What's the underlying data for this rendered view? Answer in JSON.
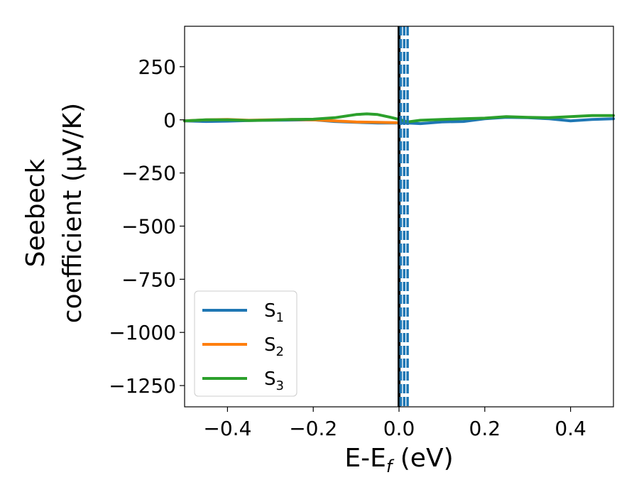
{
  "chart_data": {
    "type": "line",
    "xlabel": "E-E",
    "xlabel_sub": "f",
    "xlabel_unit": " (eV)",
    "ylabel_line1": "Seebeck",
    "ylabel_line2": "coefficient  (μV/K)",
    "xlim": [
      -0.5,
      0.5
    ],
    "ylim": [
      -1350,
      440
    ],
    "xticks": [
      -0.4,
      -0.2,
      0.0,
      0.2,
      0.4
    ],
    "xtick_labels": [
      "−0.4",
      "−0.2",
      "0.0",
      "0.2",
      "0.4"
    ],
    "yticks": [
      250,
      0,
      -250,
      -500,
      -750,
      -1000,
      -1250
    ],
    "ytick_labels": [
      "250",
      "0",
      "−250",
      "−500",
      "−750",
      "−1000",
      "−1250"
    ],
    "grid": false,
    "legend_position": "lower-left",
    "vlines": [
      {
        "x": 0.0,
        "color": "#000000",
        "style": "solid"
      },
      {
        "x": 0.004,
        "color": "#1f77b4",
        "style": "dashed"
      },
      {
        "x": 0.012,
        "color": "#1f77b4",
        "style": "dashed"
      },
      {
        "x": 0.02,
        "color": "#1f77b4",
        "style": "dashed"
      }
    ],
    "series": [
      {
        "name": "S",
        "sub": "1",
        "color": "#1f77b4",
        "x": [
          -0.5,
          -0.45,
          -0.4,
          -0.35,
          -0.3,
          -0.25,
          -0.2,
          -0.15,
          -0.1,
          -0.05,
          0.0,
          0.02,
          0.05,
          0.1,
          0.15,
          0.2,
          0.25,
          0.3,
          0.35,
          0.4,
          0.45,
          0.5
        ],
        "y": [
          -5,
          -8,
          -6,
          -3,
          -2,
          -1,
          0,
          -8,
          -12,
          -15,
          -15,
          -15,
          -18,
          -10,
          -8,
          5,
          12,
          10,
          5,
          -5,
          2,
          5
        ]
      },
      {
        "name": "S",
        "sub": "2",
        "color": "#ff7f0e",
        "x": [
          -0.5,
          -0.45,
          -0.4,
          -0.35,
          -0.3,
          -0.25,
          -0.2,
          -0.15,
          -0.1,
          -0.05,
          0.0
        ],
        "y": [
          -5,
          0,
          2,
          -2,
          0,
          2,
          0,
          -5,
          -10,
          -12,
          -14
        ]
      },
      {
        "name": "S",
        "sub": "3",
        "color": "#2ca02c",
        "x": [
          -0.5,
          -0.45,
          -0.4,
          -0.35,
          -0.3,
          -0.25,
          -0.2,
          -0.15,
          -0.1,
          -0.075,
          -0.05,
          -0.02,
          0.0,
          0.02,
          0.05,
          0.1,
          0.15,
          0.2,
          0.25,
          0.3,
          0.35,
          0.4,
          0.45,
          0.5
        ],
        "y": [
          -5,
          0,
          0,
          -3,
          -1,
          2,
          3,
          10,
          25,
          28,
          25,
          12,
          2,
          -10,
          -2,
          2,
          5,
          8,
          15,
          12,
          10,
          15,
          20,
          20
        ]
      }
    ]
  }
}
